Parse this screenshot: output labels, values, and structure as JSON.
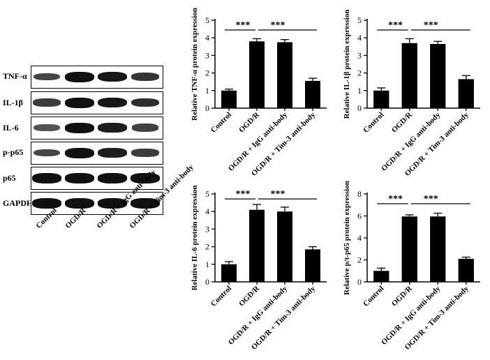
{
  "western_blot": {
    "rows": [
      {
        "label": "TNF-α",
        "intensities": [
          0.55,
          1.0,
          0.95,
          0.7
        ]
      },
      {
        "label": "IL-1β",
        "intensities": [
          0.65,
          1.0,
          0.95,
          0.75
        ]
      },
      {
        "label": "IL-6",
        "intensities": [
          0.45,
          1.0,
          0.9,
          0.6
        ]
      },
      {
        "label": "p-p65",
        "intensities": [
          0.55,
          1.0,
          0.9,
          0.65
        ]
      },
      {
        "label": "p65",
        "intensities": [
          1.0,
          1.0,
          1.0,
          1.0
        ]
      },
      {
        "label": "GAPDH",
        "intensities": [
          1.0,
          1.0,
          1.0,
          1.0
        ]
      }
    ],
    "lanes": [
      "Control",
      "OGD/R",
      "OGD/R + IgG anti-body",
      "OGD/R + Tim-3 anti-body"
    ]
  },
  "significance_label": "***",
  "chart_data": [
    {
      "type": "bar",
      "title": "",
      "xlabel": "",
      "ylabel": "Relative TNF-α protein expression",
      "categories": [
        "Control",
        "OGD/R",
        "OGD/R + IgG anti-body",
        "OGD/R + Tim-3 anti-body"
      ],
      "values": [
        1.0,
        3.8,
        3.75,
        1.55
      ],
      "errors": [
        0.08,
        0.15,
        0.15,
        0.15
      ],
      "ylim": [
        0,
        5
      ],
      "yticks": [
        0,
        1,
        2,
        3,
        4,
        5
      ],
      "significance": [
        {
          "from": 0,
          "to": 1,
          "label": "***"
        },
        {
          "from": 1,
          "to": 3,
          "label": "***"
        }
      ]
    },
    {
      "type": "bar",
      "title": "",
      "xlabel": "",
      "ylabel": "Relative IL-1β protein expression",
      "categories": [
        "Control",
        "OGD/R",
        "OGD/R + IgG anti-body",
        "OGD/R + Tim-3 anti-body"
      ],
      "values": [
        1.0,
        3.7,
        3.65,
        1.65
      ],
      "errors": [
        0.15,
        0.25,
        0.15,
        0.2
      ],
      "ylim": [
        0,
        5
      ],
      "yticks": [
        0,
        1,
        2,
        3,
        4,
        5
      ],
      "significance": [
        {
          "from": 0,
          "to": 1,
          "label": "***"
        },
        {
          "from": 1,
          "to": 3,
          "label": "***"
        }
      ]
    },
    {
      "type": "bar",
      "title": "",
      "xlabel": "",
      "ylabel": "Relative IL-6 protein expression",
      "categories": [
        "Control",
        "OGD/R",
        "OGD/R + IgG anti-body",
        "OGD/R + Tim-3 anti-body"
      ],
      "values": [
        1.0,
        4.1,
        4.0,
        1.85
      ],
      "errors": [
        0.15,
        0.3,
        0.25,
        0.15
      ],
      "ylim": [
        0,
        5
      ],
      "yticks": [
        0,
        1,
        2,
        3,
        4,
        5
      ],
      "significance": [
        {
          "from": 0,
          "to": 1,
          "label": "***"
        },
        {
          "from": 1,
          "to": 3,
          "label": "***"
        }
      ]
    },
    {
      "type": "bar",
      "title": "",
      "xlabel": "",
      "ylabel": "Relative p/t-p65 protein expression",
      "categories": [
        "Control",
        "OGD/R",
        "OGD/R + IgG anti-body",
        "OGD/R + Tim-3 anti-body"
      ],
      "values": [
        1.0,
        5.95,
        5.95,
        2.1
      ],
      "errors": [
        0.25,
        0.15,
        0.3,
        0.15
      ],
      "ylim": [
        0,
        8
      ],
      "yticks": [
        0,
        2,
        4,
        6,
        8
      ],
      "significance": [
        {
          "from": 0,
          "to": 1,
          "label": "***"
        },
        {
          "from": 1,
          "to": 3,
          "label": "***"
        }
      ]
    }
  ]
}
